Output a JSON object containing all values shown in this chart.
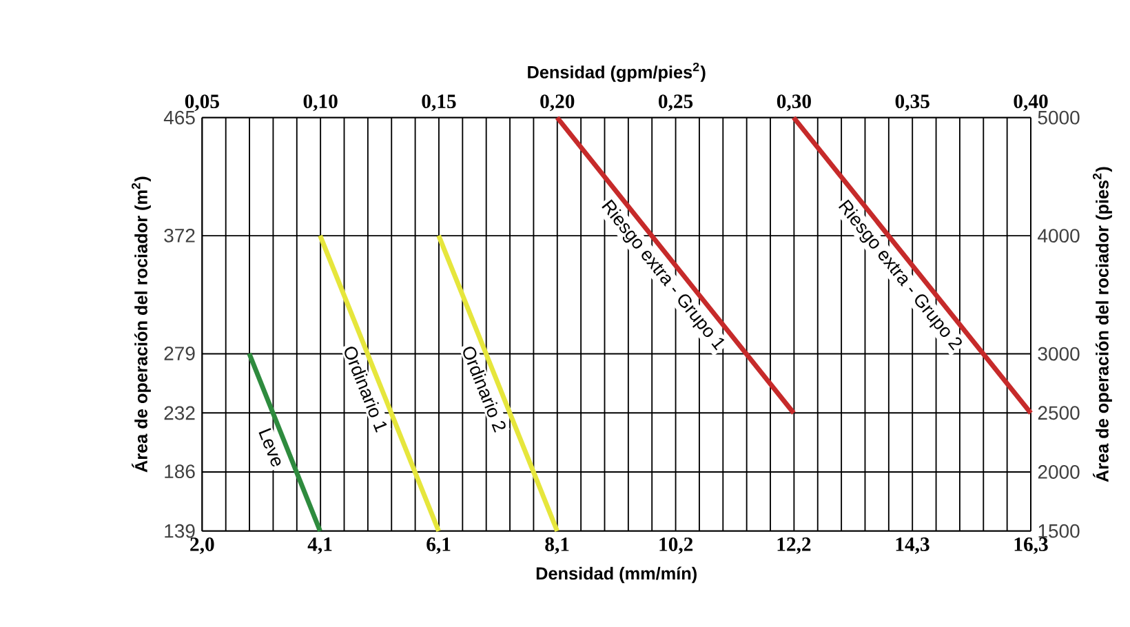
{
  "chart_data": {
    "type": "line",
    "xlabel": "Densidad (mm/mín)",
    "x2label": "Densidad (gpm/pies$^{2}$)",
    "ylabel": "Área de operación del rociador (m$^{2}$)",
    "y2label": "Área de operación del rociador (pies$^{2}$)",
    "xlim": [
      2.04,
      16.3
    ],
    "xticks": [
      {
        "value": 2.04,
        "label": "2,0"
      },
      {
        "value": 4.07,
        "label": "4,1"
      },
      {
        "value": 6.11,
        "label": "6,1"
      },
      {
        "value": 8.15,
        "label": "8,1"
      },
      {
        "value": 10.19,
        "label": "10,2"
      },
      {
        "value": 12.22,
        "label": "12,2"
      },
      {
        "value": 14.26,
        "label": "14,3"
      },
      {
        "value": 16.3,
        "label": "16,3"
      }
    ],
    "x2lim": [
      0.05,
      0.4
    ],
    "x2ticks": [
      {
        "value": 0.05,
        "label": "0,05"
      },
      {
        "value": 0.1,
        "label": "0,10"
      },
      {
        "value": 0.15,
        "label": "0,15"
      },
      {
        "value": 0.2,
        "label": "0,20"
      },
      {
        "value": 0.25,
        "label": "0,25"
      },
      {
        "value": 0.3,
        "label": "0,30"
      },
      {
        "value": 0.35,
        "label": "0,35"
      },
      {
        "value": 0.4,
        "label": "0,40"
      }
    ],
    "ylim": [
      139,
      465
    ],
    "yticks": [
      139,
      186,
      232,
      279,
      372,
      465
    ],
    "y2lim": [
      1500,
      5000
    ],
    "y2ticks": [
      1500,
      2000,
      2500,
      3000,
      4000,
      5000
    ],
    "grid": true,
    "series": [
      {
        "name": "Leve",
        "color": "#2e8b3e",
        "x": [
          2.85,
          4.07
        ],
        "values": [
          279,
          139
        ]
      },
      {
        "name": "Ordinario 1",
        "color": "#e6e63c",
        "x": [
          4.07,
          6.11
        ],
        "values": [
          372,
          139
        ]
      },
      {
        "name": "Ordinario 2",
        "color": "#e6e63c",
        "x": [
          6.11,
          8.15
        ],
        "values": [
          372,
          139
        ]
      },
      {
        "name": "Riesgo extra - Grupo 1",
        "color": "#c62a2a",
        "x": [
          8.15,
          12.22
        ],
        "values": [
          465,
          232
        ]
      },
      {
        "name": "Riesgo extra - Grupo 2",
        "color": "#c62a2a",
        "x": [
          12.22,
          16.3
        ],
        "values": [
          465,
          232
        ]
      }
    ]
  }
}
